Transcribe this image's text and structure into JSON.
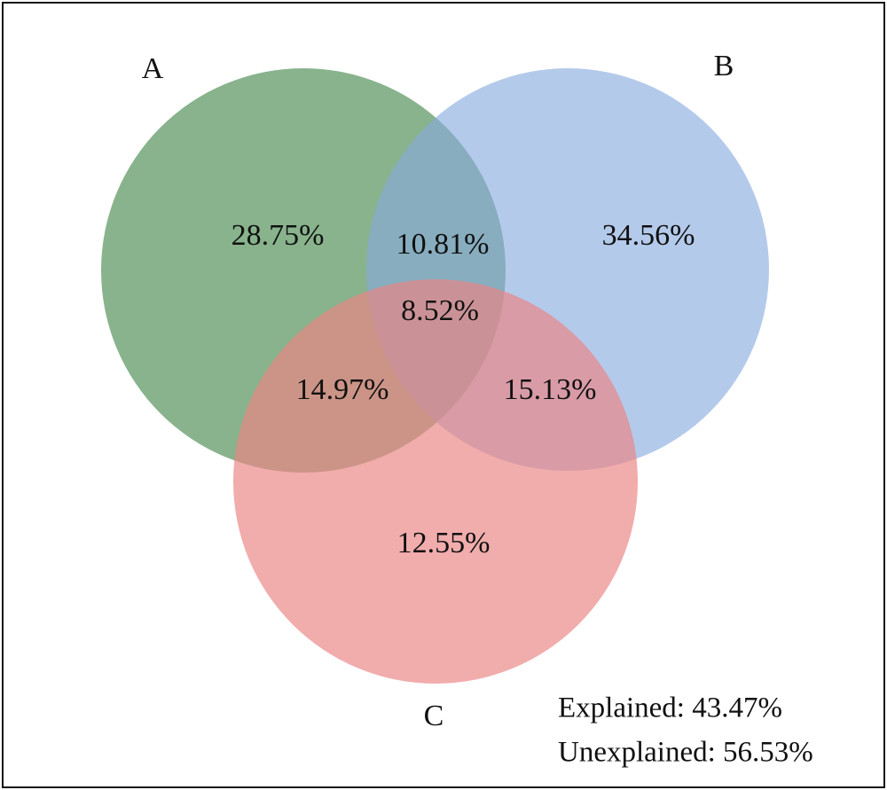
{
  "venn": {
    "sets": [
      {
        "id": "A",
        "label": "A",
        "color": "#5a9560"
      },
      {
        "id": "B",
        "label": "B",
        "color": "#86a9de"
      },
      {
        "id": "C",
        "label": "C",
        "color": "#ea8585"
      }
    ],
    "regions": {
      "A_only": "28.75%",
      "B_only": "34.56%",
      "C_only": "12.55%",
      "AB": "10.81%",
      "AC": "14.97%",
      "BC": "15.13%",
      "ABC": "8.52%"
    },
    "summary": {
      "explained": "Explained: 43.47%",
      "unexplained": "Unexplained: 56.53%"
    }
  }
}
